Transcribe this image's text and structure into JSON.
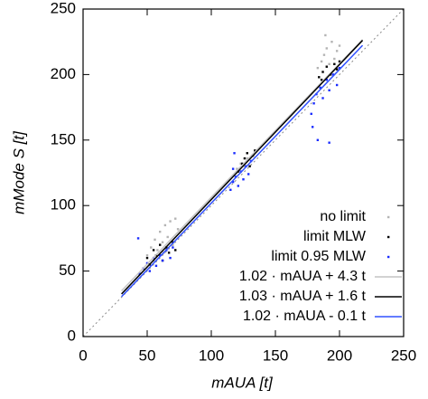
{
  "chart_data": {
    "type": "scatter",
    "xlabel": "mAUA [t]",
    "ylabel": "mMode S [t]",
    "xlim": [
      0,
      250
    ],
    "ylim": [
      0,
      250
    ],
    "xticks": [
      0,
      50,
      100,
      150,
      200,
      250
    ],
    "yticks": [
      0,
      50,
      100,
      150,
      200,
      250
    ],
    "legend": "right",
    "series": [
      {
        "name": "no limit",
        "type": "scatter",
        "color": "#b4b4b4",
        "x": [
          50,
          53,
          56,
          58,
          60,
          62,
          64,
          66,
          68,
          70,
          72,
          74,
          55,
          63,
          120,
          123,
          126,
          128,
          131,
          133,
          183,
          186,
          188,
          190,
          192,
          194,
          196,
          198,
          200,
          189
        ],
        "values": [
          62,
          68,
          74,
          66,
          80,
          72,
          85,
          76,
          88,
          70,
          90,
          82,
          58,
          64,
          128,
          132,
          130,
          136,
          134,
          138,
          205,
          210,
          215,
          220,
          208,
          225,
          212,
          218,
          222,
          230
        ]
      },
      {
        "name": "limit MLW",
        "type": "scatter",
        "color": "#000000",
        "x": [
          50,
          52,
          55,
          57,
          60,
          62,
          65,
          67,
          70,
          72,
          121,
          124,
          126,
          128,
          130,
          132,
          134,
          184,
          187,
          190,
          193,
          196,
          198,
          200,
          186
        ],
        "values": [
          60,
          55,
          66,
          62,
          70,
          58,
          68,
          64,
          72,
          66,
          126,
          132,
          136,
          140,
          130,
          138,
          142,
          198,
          202,
          206,
          200,
          208,
          204,
          210,
          196
        ]
      },
      {
        "name": "limit 0.95 MLW",
        "type": "scatter",
        "color": "#1a2cff",
        "x": [
          44,
          47,
          50,
          52,
          55,
          57,
          60,
          62,
          65,
          68,
          70,
          43,
          115,
          117,
          119,
          121,
          123,
          125,
          127,
          129,
          131,
          117,
          118,
          178,
          180,
          182,
          185,
          187,
          190,
          192,
          195,
          198,
          200,
          179,
          183,
          192
        ],
        "values": [
          48,
          52,
          56,
          50,
          60,
          54,
          62,
          58,
          66,
          60,
          68,
          75,
          112,
          118,
          122,
          115,
          126,
          120,
          130,
          124,
          134,
          128,
          140,
          170,
          178,
          185,
          190,
          182,
          196,
          188,
          200,
          192,
          205,
          160,
          150,
          148
        ]
      },
      {
        "name": "1.02 · mAUA + 4.3 t",
        "type": "line",
        "color": "#c4c4c4",
        "x": [
          30,
          218
        ],
        "values": [
          34.9,
          226.66
        ]
      },
      {
        "name": "1.03 · mAUA + 1.6 t",
        "type": "line",
        "color": "#000000",
        "x": [
          30,
          218
        ],
        "values": [
          32.5,
          226.14
        ]
      },
      {
        "name": "1.02 · mAUA - 0.1 t",
        "type": "line",
        "color": "#3050ff",
        "x": [
          30,
          218
        ],
        "values": [
          30.5,
          222.26
        ]
      }
    ]
  }
}
